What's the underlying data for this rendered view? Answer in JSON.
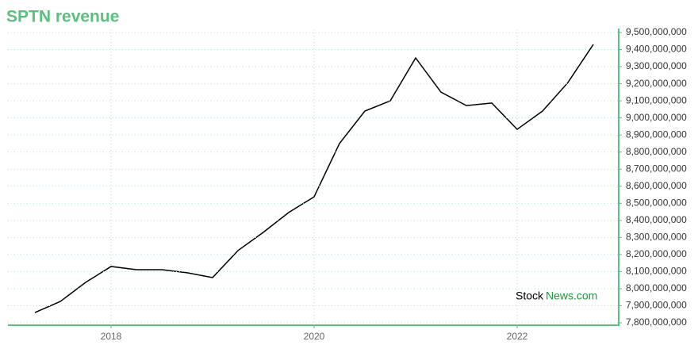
{
  "chart_data": {
    "type": "line",
    "title": "SPTN revenue",
    "categories": [
      null,
      null,
      null,
      "2018",
      null,
      null,
      null,
      null,
      null,
      null,
      null,
      "2020",
      null,
      null,
      null,
      null,
      null,
      null,
      null,
      "2022",
      null,
      null,
      null
    ],
    "series": [
      {
        "color": "#000000",
        "values": [
          7860000000,
          7925000000,
          8037000000,
          8130000000,
          8111000000,
          8111000000,
          8093000000,
          8065000000,
          8223000000,
          8330000000,
          8446000000,
          8538000000,
          8850000000,
          9040000000,
          9100000000,
          9351000000,
          9151000000,
          9072000000,
          9087000000,
          8933000000,
          9040000000,
          9207000000,
          9430000000
        ]
      }
    ],
    "ylim": [
      7800000000,
      9500000000
    ],
    "yticks": [
      {
        "value": 7800000000,
        "label": "7,800,000,000"
      },
      {
        "value": 7900000000,
        "label": "7,900,000,000"
      },
      {
        "value": 8000000000,
        "label": "8,000,000,000"
      },
      {
        "value": 8100000000,
        "label": "8,100,000,000"
      },
      {
        "value": 8200000000,
        "label": "8,200,000,000"
      },
      {
        "value": 8300000000,
        "label": "8,300,000,000"
      },
      {
        "value": 8400000000,
        "label": "8,400,000,000"
      },
      {
        "value": 8500000000,
        "label": "8,500,000,000"
      },
      {
        "value": 8600000000,
        "label": "8,600,000,000"
      },
      {
        "value": 8700000000,
        "label": "8,700,000,000"
      },
      {
        "value": 8800000000,
        "label": "8,800,000,000"
      },
      {
        "value": 8900000000,
        "label": "8,900,000,000"
      },
      {
        "value": 9000000000,
        "label": "9,000,000,000"
      },
      {
        "value": 9100000000,
        "label": "9,100,000,000"
      },
      {
        "value": 9200000000,
        "label": "9,200,000,000"
      },
      {
        "value": 9300000000,
        "label": "9,300,000,000"
      },
      {
        "value": 9400000000,
        "label": "9,400,000,000"
      },
      {
        "value": 9500000000,
        "label": "9,500,000,000"
      }
    ],
    "grid": true,
    "y_axis_side": "right",
    "axis_color": "#5bbf7f",
    "annotations": [
      "Stock",
      "News.com"
    ]
  }
}
